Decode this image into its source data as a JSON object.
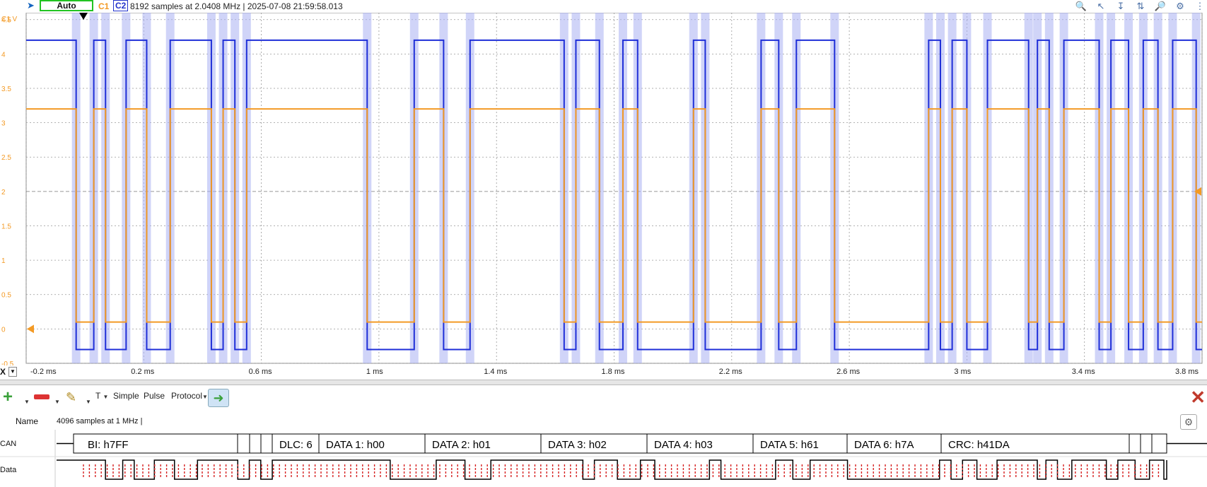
{
  "header": {
    "trigger_mode": "Auto",
    "ch1_label": "C1",
    "ch2_label": "C2",
    "acquisition_info": "8192 samples at 2.0408 MHz | 2025-07-08 21:59:58.013",
    "y_unit_label": "C1 V"
  },
  "colors": {
    "ch1": "#f39a25",
    "ch2": "#1f2fd8",
    "ch2_shadow": "#aab0f2",
    "grid": "#999999",
    "decode_bits": "#d62020"
  },
  "y_ticks": [
    "4.5",
    "4",
    "3.5",
    "3",
    "2.5",
    "2",
    "1.5",
    "1",
    "0.5",
    "0",
    "-0.5"
  ],
  "x_axis": {
    "label": "X",
    "ticks": [
      "-0.2 ms",
      "0.2 ms",
      "0.6 ms",
      "1 ms",
      "1.4 ms",
      "1.8 ms",
      "2.2 ms",
      "2.6 ms",
      "3 ms",
      "3.4 ms",
      "3.8 ms"
    ]
  },
  "toolbar": {
    "t_label": "T",
    "simple": "Simple",
    "pulse": "Pulse",
    "protocol": "Protocol"
  },
  "protocol_panel": {
    "name_header": "Name",
    "samples_info": "4096 samples at 1 MHz |",
    "rows": [
      {
        "label": "CAN"
      },
      {
        "label": "Data"
      }
    ],
    "can_fields": [
      "BI: h7FF",
      "DLC: 6",
      "DATA 1: h00",
      "DATA 2: h01",
      "DATA 3: h02",
      "DATA 4: h03",
      "DATA 5: h61",
      "DATA 6: h7A",
      "CRC: h41DA"
    ]
  },
  "chart_data": {
    "type": "line",
    "title": "",
    "xlabel": "",
    "ylabel": "C1 V",
    "xlim": [
      -0.2,
      3.8
    ],
    "ylim": [
      -0.5,
      4.6
    ],
    "x_unit": "ms",
    "grid": true,
    "series": [
      {
        "name": "C1",
        "levels_v": {
          "high": 3.2,
          "low": 0.1
        }
      },
      {
        "name": "C2",
        "levels_v": {
          "high": 4.2,
          "low": -0.3
        }
      }
    ],
    "transition_times_ms": [
      -0.03,
      0.03,
      0.07,
      0.14,
      0.21,
      0.29,
      0.43,
      0.47,
      0.51,
      0.55,
      0.96,
      1.12,
      1.22,
      1.31,
      1.63,
      1.67,
      1.75,
      1.83,
      1.88,
      2.07,
      2.11,
      2.3,
      2.36,
      2.42,
      2.55,
      2.87,
      2.91,
      2.95,
      3.0,
      3.07,
      3.21,
      3.24,
      3.28,
      3.33,
      3.45,
      3.49,
      3.55,
      3.6,
      3.65,
      3.7,
      3.78
    ],
    "initial_state": "high"
  }
}
